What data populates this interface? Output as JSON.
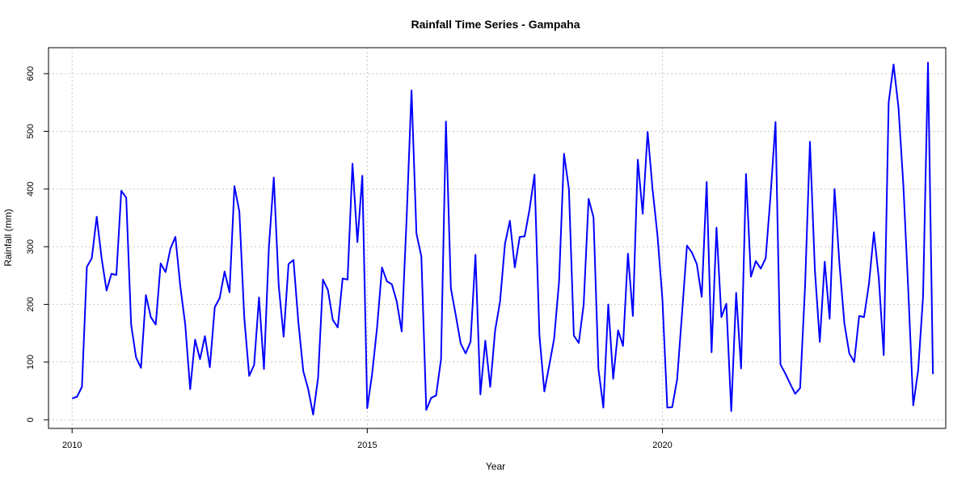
{
  "chart_data": {
    "type": "line",
    "title": "Rainfall Time Series - Gampaha",
    "xlabel": "Year",
    "ylabel": "Rainfall (mm)",
    "xlim": [
      2009.6,
      2024.8
    ],
    "ylim": [
      -15,
      645
    ],
    "x_ticks": [
      2010,
      2015,
      2020
    ],
    "y_ticks": [
      0,
      100,
      200,
      300,
      400,
      500,
      600
    ],
    "grid": true,
    "line_color": "#0000ff",
    "series": [
      {
        "x_start": 2010.0,
        "x_step": 0.08333,
        "values": [
          37,
          40,
          57,
          265,
          280,
          352,
          280,
          224,
          253,
          251,
          397,
          385,
          165,
          108,
          90,
          216,
          178,
          165,
          271,
          256,
          297,
          317,
          231,
          165,
          53,
          139,
          105,
          145,
          91,
          195,
          211,
          257,
          221,
          405,
          361,
          177,
          76,
          95,
          212,
          88,
          298,
          420,
          233,
          144,
          270,
          277,
          169,
          84,
          53,
          9,
          72,
          243,
          225,
          173,
          160,
          245,
          243,
          444,
          308,
          423,
          20,
          80,
          160,
          264,
          240,
          235,
          205,
          153,
          348,
          571,
          323,
          283,
          17,
          38,
          42,
          105,
          517,
          228,
          181,
          132,
          115,
          135,
          286,
          44,
          137,
          57,
          155,
          205,
          305,
          345,
          264,
          317,
          318,
          365,
          425,
          147,
          49,
          94,
          141,
          240,
          461,
          400,
          146,
          133,
          200,
          383,
          351,
          88,
          21,
          200,
          71,
          155,
          128,
          288,
          180,
          451,
          357,
          499,
          400,
          320,
          210,
          21,
          22,
          70,
          185,
          302,
          290,
          270,
          213,
          412,
          117,
          333,
          178,
          201,
          15,
          220,
          89,
          426,
          248,
          275,
          262,
          280,
          390,
          516,
          96,
          80,
          62,
          45,
          55,
          230,
          482,
          260,
          135,
          274,
          175,
          400,
          270,
          167,
          115,
          100,
          180,
          178,
          236,
          325,
          245,
          112,
          550,
          616,
          541,
          405,
          222,
          25,
          86,
          214,
          619,
          79
        ]
      }
    ]
  }
}
